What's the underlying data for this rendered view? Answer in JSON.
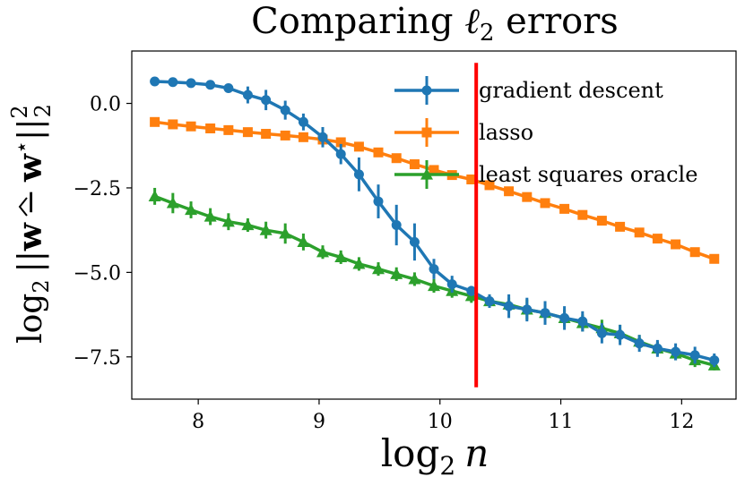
{
  "chart_data": {
    "type": "line",
    "title": "Comparing ℓ₂ errors",
    "xlabel": "log₂ n",
    "ylabel": "log₂ ||ŵ − w*||₂²",
    "xlim": [
      7.45,
      12.45
    ],
    "ylim": [
      -8.75,
      1.55
    ],
    "xticks": [
      8,
      9,
      10,
      11,
      12
    ],
    "yticks": [
      0.0,
      -2.5,
      -5.0,
      -7.5
    ],
    "xtick_labels": [
      "8",
      "9",
      "10",
      "11",
      "12"
    ],
    "ytick_labels": [
      "0.0",
      "−2.5",
      "−5.0",
      "−7.5"
    ],
    "legend_position": "top-right",
    "grid": false,
    "x": [
      7.64,
      7.79,
      7.94,
      8.1,
      8.25,
      8.41,
      8.56,
      8.72,
      8.87,
      9.03,
      9.18,
      9.33,
      9.49,
      9.64,
      9.79,
      9.95,
      10.1,
      10.26,
      10.41,
      10.57,
      10.72,
      10.87,
      11.03,
      11.18,
      11.34,
      11.49,
      11.65,
      11.8,
      11.95,
      12.11,
      12.27
    ],
    "series": [
      {
        "name": "gradient descent",
        "color": "#1f77b4",
        "marker": "circle",
        "values": [
          0.65,
          0.63,
          0.6,
          0.55,
          0.45,
          0.25,
          0.1,
          -0.2,
          -0.55,
          -1.0,
          -1.5,
          -2.1,
          -2.9,
          -3.6,
          -4.1,
          -4.9,
          -5.35,
          -5.55,
          -5.85,
          -6.0,
          -6.1,
          -6.2,
          -6.35,
          -6.45,
          -6.8,
          -6.85,
          -7.1,
          -7.25,
          -7.35,
          -7.45,
          -7.6
        ],
        "errors": [
          0.05,
          0.05,
          0.05,
          0.06,
          0.08,
          0.25,
          0.3,
          0.28,
          0.25,
          0.3,
          0.3,
          0.5,
          0.5,
          0.6,
          0.55,
          0.3,
          0.25,
          0.15,
          0.2,
          0.35,
          0.35,
          0.35,
          0.35,
          0.3,
          0.3,
          0.3,
          0.25,
          0.25,
          0.25,
          0.25,
          0.2
        ]
      },
      {
        "name": "lasso",
        "color": "#ff7f0e",
        "marker": "square",
        "values": [
          -0.55,
          -0.62,
          -0.68,
          -0.74,
          -0.79,
          -0.85,
          -0.9,
          -0.95,
          -1.0,
          -1.07,
          -1.15,
          -1.28,
          -1.45,
          -1.62,
          -1.8,
          -1.97,
          -2.12,
          -2.25,
          -2.42,
          -2.6,
          -2.77,
          -2.95,
          -3.12,
          -3.3,
          -3.47,
          -3.65,
          -3.82,
          -4.0,
          -4.17,
          -4.4,
          -4.6
        ],
        "errors": [
          0.1,
          0.1,
          0.1,
          0.1,
          0.1,
          0.1,
          0.1,
          0.1,
          0.1,
          0.1,
          0.1,
          0.1,
          0.1,
          0.1,
          0.1,
          0.1,
          0.1,
          0.1,
          0.1,
          0.1,
          0.1,
          0.1,
          0.1,
          0.1,
          0.1,
          0.1,
          0.1,
          0.1,
          0.1,
          0.1,
          0.1
        ]
      },
      {
        "name": "least squares oracle",
        "color": "#2ca02c",
        "marker": "triangle",
        "values": [
          -2.75,
          -2.95,
          -3.15,
          -3.35,
          -3.5,
          -3.6,
          -3.75,
          -3.85,
          -4.1,
          -4.4,
          -4.55,
          -4.75,
          -4.9,
          -5.05,
          -5.2,
          -5.4,
          -5.55,
          -5.7,
          -5.85,
          -5.95,
          -6.1,
          -6.2,
          -6.35,
          -6.5,
          -6.65,
          -6.8,
          -7.05,
          -7.25,
          -7.4,
          -7.6,
          -7.75
        ],
        "errors": [
          0.25,
          0.3,
          0.25,
          0.25,
          0.25,
          0.2,
          0.25,
          0.3,
          0.25,
          0.2,
          0.2,
          0.2,
          0.2,
          0.2,
          0.2,
          0.2,
          0.2,
          0.2,
          0.2,
          0.2,
          0.3,
          0.25,
          0.25,
          0.25,
          0.25,
          0.25,
          0.2,
          0.2,
          0.2,
          0.2,
          0.15
        ]
      }
    ],
    "vline": {
      "x": 10.3,
      "color": "#ff0000",
      "y_from": -8.4,
      "y_to": 1.2
    }
  },
  "labels": {
    "title_main": "Comparing ",
    "title_ell": "ℓ",
    "title_sub": "2",
    "title_rest": " errors",
    "xlabel_main": "log",
    "xlabel_sub": "2",
    "xlabel_var": "n",
    "ylabel_main": "log",
    "ylabel_sub": "2",
    "ylabel_norm_open": "||",
    "ylabel_hat": "w",
    "ylabel_minus": "−",
    "ylabel_w": "w",
    "ylabel_star": "⋆",
    "ylabel_norm_close": "||",
    "ylabel_sup": "2",
    "ylabel_sub2": "2"
  }
}
